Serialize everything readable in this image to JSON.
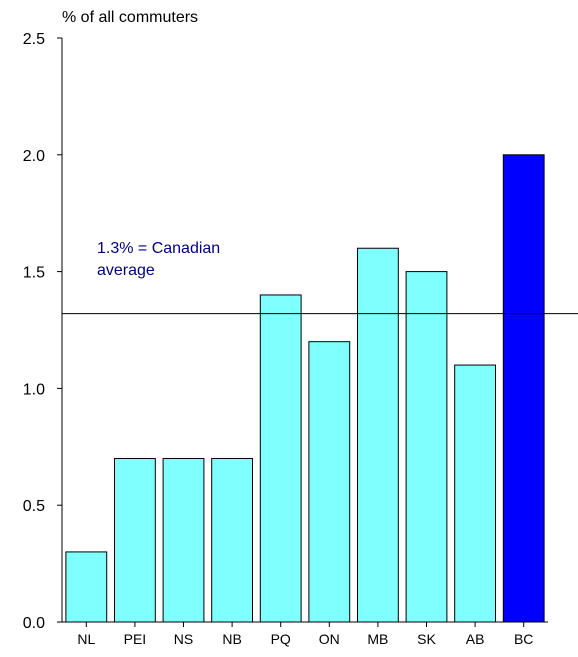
{
  "chart_data": {
    "type": "bar",
    "title": "",
    "ylabel": "% of all commuters",
    "xlabel": "",
    "categories": [
      "NL",
      "PEI",
      "NS",
      "NB",
      "PQ",
      "ON",
      "MB",
      "SK",
      "AB",
      "BC"
    ],
    "values": [
      0.3,
      0.7,
      0.7,
      0.7,
      1.4,
      1.2,
      1.6,
      1.5,
      1.1,
      2.0
    ],
    "ylim": [
      0,
      2.5
    ],
    "yticks": [
      "0.0",
      "0.5",
      "1.0",
      "1.5",
      "2.0",
      "2.5"
    ],
    "highlight_category": "BC",
    "reference_line": {
      "value": 1.32,
      "label_line1": "1.3% = Canadian",
      "label_line2": "average"
    },
    "grid": false,
    "legend": "none"
  },
  "colors": {
    "bar": "#80ffff",
    "highlight_bar": "#0000ff",
    "bar_stroke": "#000000",
    "axis": "#000000",
    "reference_line": "#000000",
    "reference_label": "#000080",
    "text": "#000000"
  }
}
